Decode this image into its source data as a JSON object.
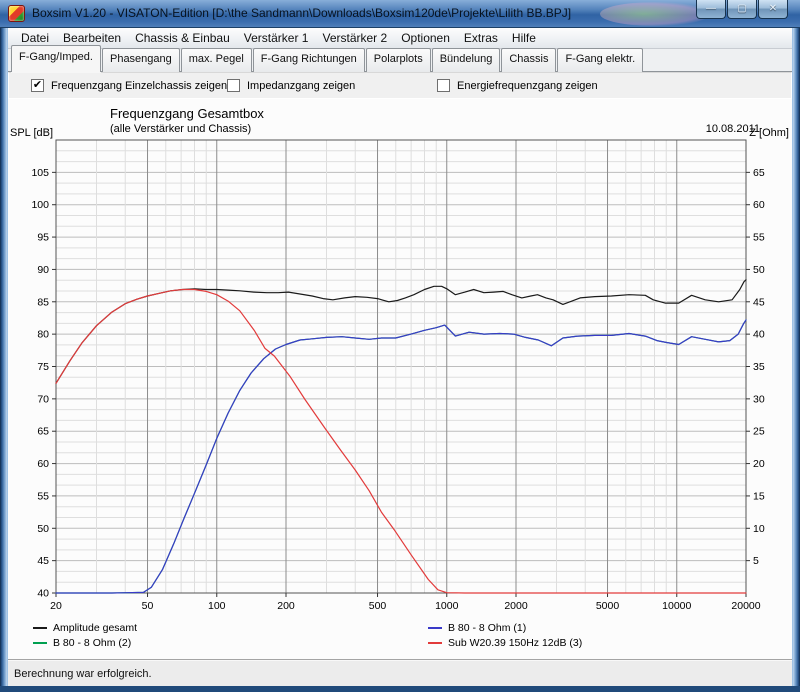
{
  "window": {
    "title": "Boxsim V1.20 - VISATON-Edition [D:\\the Sandmann\\Downloads\\Boxsim120de\\Projekte\\Lilith BB.BPJ]",
    "controls": [
      {
        "name": "minimize",
        "glyph": "—"
      },
      {
        "name": "maximize",
        "glyph": "▢"
      },
      {
        "name": "close",
        "glyph": "✕"
      }
    ]
  },
  "menu": {
    "items": [
      "Datei",
      "Bearbeiten",
      "Chassis & Einbau",
      "Verstärker 1",
      "Verstärker 2",
      "Optionen",
      "Extras",
      "Hilfe"
    ]
  },
  "tabs": {
    "active": "F-Gang/Imped.",
    "items": [
      "F-Gang/Imped.",
      "Phasengang",
      "max. Pegel",
      "F-Gang Richtungen",
      "Polarplots",
      "Bündelung",
      "Chassis",
      "F-Gang elektr."
    ]
  },
  "options": {
    "checkboxes": [
      {
        "label": "Frequenzgang Einzelchassis zeigen",
        "checked": true,
        "x": 22
      },
      {
        "label": "Impedanzgang zeigen",
        "checked": false,
        "x": 218
      },
      {
        "label": "Energiefrequenzgang zeigen",
        "checked": false,
        "x": 428
      }
    ]
  },
  "chart": {
    "title": "Frequenzgang Gesamtbox",
    "subtitle": "(alle Verstärker und Chassis)",
    "date": "10.08.2011",
    "y_left_label": "SPL [dB]",
    "y_right_label": "Z [Ohm]"
  },
  "chart_data": {
    "type": "line",
    "title": "Frequenzgang Gesamtbox",
    "subtitle": "(alle Verstärker und Chassis)",
    "date": "10.08.2011",
    "grid": true,
    "x_axis": {
      "scale": "log",
      "unit": "Hz",
      "min": 20,
      "max": 20000,
      "ticks": [
        20,
        50,
        100,
        200,
        500,
        1000,
        2000,
        5000,
        10000,
        20000
      ]
    },
    "y_left": {
      "label": "SPL [dB]",
      "min": 40,
      "max": 110,
      "major_step": 5,
      "minor_divisions": 3,
      "tick_labels": [
        40,
        45,
        50,
        55,
        60,
        65,
        70,
        75,
        80,
        85,
        90,
        95,
        100,
        105
      ]
    },
    "y_right": {
      "label": "Z [Ohm]",
      "min": 0,
      "max": 70,
      "tick_labels": [
        5,
        10,
        15,
        20,
        25,
        30,
        35,
        40,
        45,
        50,
        55,
        60,
        65
      ]
    },
    "legend": {
      "position": "below-left",
      "columns": [
        [
          "Amplitude gesamt",
          "B 80 - 8 Ohm (2)"
        ],
        [
          "B 80 - 8 Ohm (1)",
          "Sub W20.39 150Hz 12dB (3)"
        ]
      ]
    },
    "series": [
      {
        "name": "Amplitude gesamt",
        "color": "#1a1a1a",
        "axis": "left",
        "points": [
          [
            20,
            72.4
          ],
          [
            23,
            75.9
          ],
          [
            26,
            78.7
          ],
          [
            30,
            81.3
          ],
          [
            35,
            83.4
          ],
          [
            40,
            84.7
          ],
          [
            45,
            85.4
          ],
          [
            50,
            85.9
          ],
          [
            56,
            86.3
          ],
          [
            63,
            86.7
          ],
          [
            71,
            86.9
          ],
          [
            80,
            87.0
          ],
          [
            90,
            86.9
          ],
          [
            100,
            86.9
          ],
          [
            112,
            86.8
          ],
          [
            126,
            86.7
          ],
          [
            145,
            86.5
          ],
          [
            165,
            86.4
          ],
          [
            185,
            86.4
          ],
          [
            205,
            86.5
          ],
          [
            230,
            86.2
          ],
          [
            260,
            85.9
          ],
          [
            290,
            85.5
          ],
          [
            320,
            85.3
          ],
          [
            360,
            85.6
          ],
          [
            400,
            85.8
          ],
          [
            450,
            85.7
          ],
          [
            500,
            85.5
          ],
          [
            560,
            85.0
          ],
          [
            610,
            85.2
          ],
          [
            660,
            85.6
          ],
          [
            720,
            86.1
          ],
          [
            800,
            86.9
          ],
          [
            880,
            87.4
          ],
          [
            950,
            87.4
          ],
          [
            1000,
            87.0
          ],
          [
            1090,
            86.1
          ],
          [
            1200,
            86.5
          ],
          [
            1310,
            86.9
          ],
          [
            1450,
            86.4
          ],
          [
            1600,
            86.5
          ],
          [
            1760,
            86.6
          ],
          [
            1920,
            86.1
          ],
          [
            2120,
            85.6
          ],
          [
            2320,
            85.9
          ],
          [
            2480,
            86.1
          ],
          [
            2700,
            85.6
          ],
          [
            2900,
            85.3
          ],
          [
            3200,
            84.6
          ],
          [
            3500,
            85.1
          ],
          [
            3800,
            85.6
          ],
          [
            4400,
            85.8
          ],
          [
            5200,
            85.9
          ],
          [
            6200,
            86.1
          ],
          [
            7300,
            86.0
          ],
          [
            7900,
            85.3
          ],
          [
            8900,
            84.8
          ],
          [
            10200,
            84.8
          ],
          [
            11600,
            86.0
          ],
          [
            13300,
            85.3
          ],
          [
            15200,
            85.0
          ],
          [
            17400,
            85.3
          ],
          [
            18800,
            86.9
          ],
          [
            19600,
            88.1
          ],
          [
            20000,
            88.4
          ]
        ]
      },
      {
        "name": "B 80 - 8 Ohm (2)",
        "color": "#00a050",
        "axis": "left",
        "note": "identical response, hidden underneath B 80 - 8 Ohm (1)",
        "points": [
          [
            20,
            40
          ],
          [
            35,
            40
          ],
          [
            48,
            40.1
          ],
          [
            52,
            40.9
          ],
          [
            58,
            43.6
          ],
          [
            65,
            47.6
          ],
          [
            72,
            51.5
          ],
          [
            80,
            55.4
          ],
          [
            90,
            59.8
          ],
          [
            100,
            63.9
          ],
          [
            112,
            67.8
          ],
          [
            126,
            71.3
          ],
          [
            141,
            74.0
          ],
          [
            160,
            76.2
          ],
          [
            180,
            77.7
          ],
          [
            200,
            78.4
          ],
          [
            230,
            79.1
          ],
          [
            264,
            79.3
          ],
          [
            300,
            79.5
          ],
          [
            350,
            79.6
          ],
          [
            400,
            79.4
          ],
          [
            460,
            79.2
          ],
          [
            520,
            79.4
          ],
          [
            600,
            79.4
          ],
          [
            700,
            80.0
          ],
          [
            800,
            80.6
          ],
          [
            900,
            81.0
          ],
          [
            980,
            81.4
          ],
          [
            1090,
            79.7
          ],
          [
            1250,
            80.3
          ],
          [
            1450,
            80.0
          ],
          [
            1700,
            80.1
          ],
          [
            1950,
            80.0
          ],
          [
            2200,
            79.5
          ],
          [
            2500,
            79.1
          ],
          [
            2850,
            78.2
          ],
          [
            3200,
            79.4
          ],
          [
            3700,
            79.7
          ],
          [
            4400,
            79.8
          ],
          [
            5200,
            79.8
          ],
          [
            6200,
            80.1
          ],
          [
            7300,
            79.7
          ],
          [
            8200,
            79.0
          ],
          [
            9100,
            78.7
          ],
          [
            10200,
            78.4
          ],
          [
            11600,
            79.6
          ],
          [
            13300,
            79.2
          ],
          [
            15200,
            78.8
          ],
          [
            17000,
            79.0
          ],
          [
            18500,
            80.0
          ],
          [
            19500,
            81.6
          ],
          [
            20000,
            82.2
          ]
        ]
      },
      {
        "name": "B 80 - 8 Ohm (1)",
        "color": "#3a3ac8",
        "axis": "left",
        "points": [
          [
            20,
            40
          ],
          [
            35,
            40
          ],
          [
            48,
            40.1
          ],
          [
            52,
            40.9
          ],
          [
            58,
            43.6
          ],
          [
            65,
            47.6
          ],
          [
            72,
            51.5
          ],
          [
            80,
            55.4
          ],
          [
            90,
            59.8
          ],
          [
            100,
            63.9
          ],
          [
            112,
            67.8
          ],
          [
            126,
            71.3
          ],
          [
            141,
            74.0
          ],
          [
            160,
            76.2
          ],
          [
            180,
            77.7
          ],
          [
            200,
            78.4
          ],
          [
            230,
            79.1
          ],
          [
            264,
            79.3
          ],
          [
            300,
            79.5
          ],
          [
            350,
            79.6
          ],
          [
            400,
            79.4
          ],
          [
            460,
            79.2
          ],
          [
            520,
            79.4
          ],
          [
            600,
            79.4
          ],
          [
            700,
            80.0
          ],
          [
            800,
            80.6
          ],
          [
            900,
            81.0
          ],
          [
            980,
            81.4
          ],
          [
            1090,
            79.7
          ],
          [
            1250,
            80.3
          ],
          [
            1450,
            80.0
          ],
          [
            1700,
            80.1
          ],
          [
            1950,
            80.0
          ],
          [
            2200,
            79.5
          ],
          [
            2500,
            79.1
          ],
          [
            2850,
            78.2
          ],
          [
            3200,
            79.4
          ],
          [
            3700,
            79.7
          ],
          [
            4400,
            79.8
          ],
          [
            5200,
            79.8
          ],
          [
            6200,
            80.1
          ],
          [
            7300,
            79.7
          ],
          [
            8200,
            79.0
          ],
          [
            9100,
            78.7
          ],
          [
            10200,
            78.4
          ],
          [
            11600,
            79.6
          ],
          [
            13300,
            79.2
          ],
          [
            15200,
            78.8
          ],
          [
            17000,
            79.0
          ],
          [
            18500,
            80.0
          ],
          [
            19500,
            81.6
          ],
          [
            20000,
            82.2
          ]
        ]
      },
      {
        "name": "Sub W20.39 150Hz 12dB (3)",
        "color": "#e23b3b",
        "axis": "left",
        "points": [
          [
            20,
            72.4
          ],
          [
            23,
            75.9
          ],
          [
            26,
            78.7
          ],
          [
            30,
            81.3
          ],
          [
            35,
            83.4
          ],
          [
            40,
            84.7
          ],
          [
            45,
            85.4
          ],
          [
            50,
            85.9
          ],
          [
            56,
            86.3
          ],
          [
            63,
            86.7
          ],
          [
            71,
            86.9
          ],
          [
            80,
            86.9
          ],
          [
            90,
            86.6
          ],
          [
            100,
            86.1
          ],
          [
            112,
            85.1
          ],
          [
            126,
            83.6
          ],
          [
            146,
            80.5
          ],
          [
            162,
            77.8
          ],
          [
            178,
            76.6
          ],
          [
            208,
            73.5
          ],
          [
            242,
            69.9
          ],
          [
            295,
            65.5
          ],
          [
            345,
            62.1
          ],
          [
            400,
            59.0
          ],
          [
            460,
            55.8
          ],
          [
            520,
            52.5
          ],
          [
            590,
            49.8
          ],
          [
            700,
            45.9
          ],
          [
            830,
            42.1
          ],
          [
            915,
            40.5
          ],
          [
            1000,
            40.05
          ],
          [
            1200,
            40
          ],
          [
            2000,
            40
          ],
          [
            5000,
            40
          ],
          [
            10000,
            40
          ],
          [
            20000,
            40
          ]
        ]
      }
    ]
  },
  "status_bar": {
    "text": "Berechnung war erfolgreich."
  }
}
